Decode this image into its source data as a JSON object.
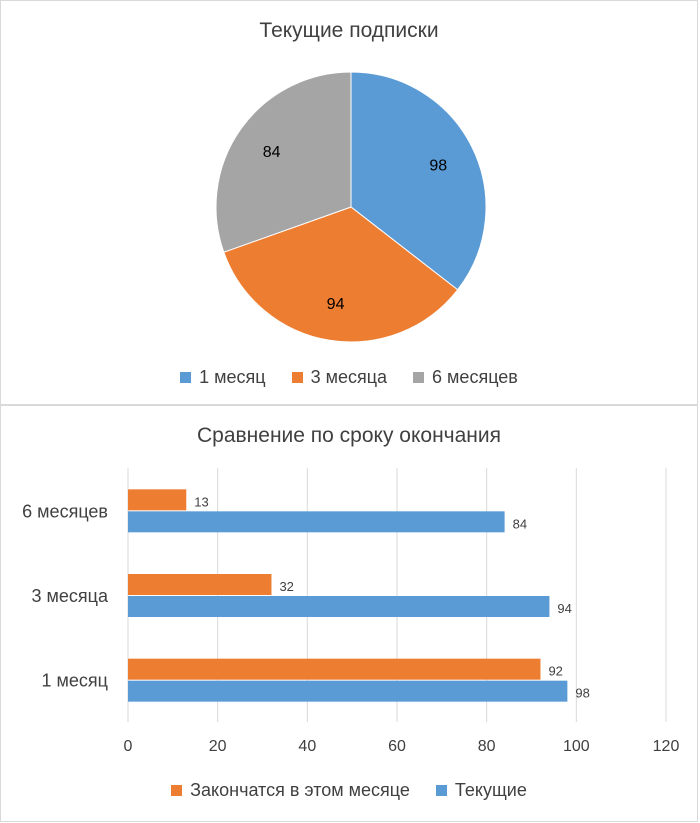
{
  "chart_data": [
    {
      "type": "pie",
      "title": "Текущие подписки",
      "categories": [
        "1 месяц",
        "3 месяца",
        "6 месяцев"
      ],
      "values": [
        98,
        94,
        84
      ],
      "colors": [
        "#5b9bd5",
        "#ed7d31",
        "#a5a5a5"
      ],
      "legend_position": "bottom"
    },
    {
      "type": "bar",
      "orientation": "horizontal",
      "title": "Сравнение по сроку окончания",
      "categories": [
        "1 месяц",
        "3 месяца",
        "6 месяцев"
      ],
      "series": [
        {
          "name": "Закончатся в этом месяце",
          "values": [
            92,
            32,
            13
          ],
          "color": "#ed7d31"
        },
        {
          "name": "Текущие",
          "values": [
            98,
            94,
            84
          ],
          "color": "#5b9bd5"
        }
      ],
      "xlim": [
        0,
        120
      ],
      "xticks": [
        "0",
        "20",
        "40",
        "60",
        "80",
        "100",
        "120"
      ],
      "grid": true,
      "legend_position": "bottom"
    }
  ]
}
